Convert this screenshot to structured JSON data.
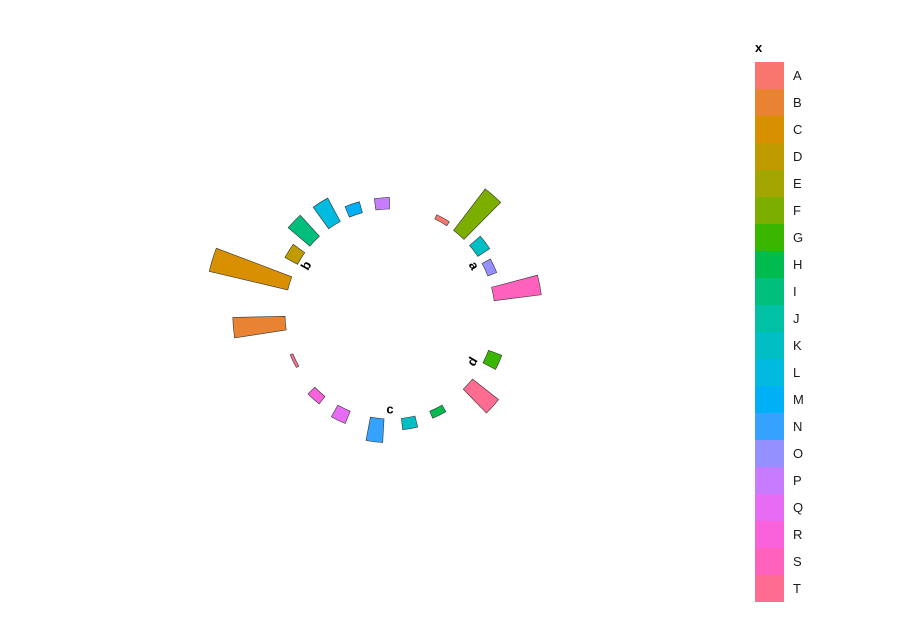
{
  "chart_data": {
    "type": "bar",
    "coord": "polar",
    "legend": {
      "title": "x",
      "placement": "right",
      "entries": [
        {
          "label": "A",
          "color": "#F8766D"
        },
        {
          "label": "B",
          "color": "#EA8331"
        },
        {
          "label": "C",
          "color": "#D89000"
        },
        {
          "label": "D",
          "color": "#C09B00"
        },
        {
          "label": "E",
          "color": "#A3A500"
        },
        {
          "label": "F",
          "color": "#7CAE00"
        },
        {
          "label": "G",
          "color": "#39B600"
        },
        {
          "label": "H",
          "color": "#00BB4E"
        },
        {
          "label": "I",
          "color": "#00BF7D"
        },
        {
          "label": "J",
          "color": "#00C1A3"
        },
        {
          "label": "K",
          "color": "#00BFC4"
        },
        {
          "label": "L",
          "color": "#00BAE0"
        },
        {
          "label": "M",
          "color": "#00B0F6"
        },
        {
          "label": "N",
          "color": "#35A2FF"
        },
        {
          "label": "O",
          "color": "#9590FF"
        },
        {
          "label": "P",
          "color": "#C77CFF"
        },
        {
          "label": "Q",
          "color": "#E76BF3"
        },
        {
          "label": "R",
          "color": "#FA62DB"
        },
        {
          "label": "S",
          "color": "#FF62BC"
        },
        {
          "label": "T",
          "color": "#FF6C91"
        }
      ]
    },
    "groups": [
      {
        "label": "a",
        "angle": 60
      },
      {
        "label": "b",
        "angle": -60
      },
      {
        "label": "c",
        "angle": 180
      },
      {
        "label": "d",
        "angle": 120
      }
    ],
    "bars": [
      {
        "id": "a-A",
        "category": "A",
        "group": "a",
        "angle": 29,
        "value": 0.5
      },
      {
        "id": "a-F",
        "category": "F",
        "group": "a",
        "angle": 41,
        "value": 5.5
      },
      {
        "id": "a-K",
        "category": "K",
        "group": "a",
        "angle": 53,
        "value": 1.5
      },
      {
        "id": "a-O",
        "category": "O",
        "group": "a",
        "angle": 65,
        "value": 1.0
      },
      {
        "id": "a-S",
        "category": "S",
        "group": "a",
        "angle": 79,
        "value": 5.0
      },
      {
        "id": "b-B",
        "category": "B",
        "group": "b",
        "angle": -95,
        "value": 5.5
      },
      {
        "id": "b-C",
        "category": "C",
        "group": "b",
        "angle": -73,
        "value": 8.5
      },
      {
        "id": "b-D",
        "category": "D",
        "group": "b",
        "angle": -58,
        "value": 1.5
      },
      {
        "id": "b-I",
        "category": "I",
        "group": "b",
        "angle": -46,
        "value": 3.0
      },
      {
        "id": "b-L",
        "category": "L",
        "group": "b",
        "angle": -32,
        "value": 2.8
      },
      {
        "id": "b-M",
        "category": "M",
        "group": "b",
        "angle": -19,
        "value": 1.2
      },
      {
        "id": "b-P",
        "category": "P",
        "group": "b",
        "angle": -4,
        "value": 1.2
      },
      {
        "id": "b-T",
        "category": "T",
        "group": "b",
        "angle": -116,
        "value": 0.3
      },
      {
        "id": "c-H",
        "category": "H",
        "group": "c",
        "angle": 154,
        "value": 0.8
      },
      {
        "id": "c-K",
        "category": "K",
        "group": "c",
        "angle": 170,
        "value": 1.2
      },
      {
        "id": "c-N",
        "category": "N",
        "group": "c",
        "angle": 187,
        "value": 2.5
      },
      {
        "id": "c-Q",
        "category": "Q",
        "group": "c",
        "angle": 206,
        "value": 1.4
      },
      {
        "id": "c-R",
        "category": "R",
        "group": "c",
        "angle": 222,
        "value": 1.0
      },
      {
        "id": "d-G",
        "category": "G",
        "group": "d",
        "angle": 114,
        "value": 1.5
      },
      {
        "id": "d-T",
        "category": "T",
        "group": "d",
        "angle": 132,
        "value": 3.5
      }
    ]
  }
}
